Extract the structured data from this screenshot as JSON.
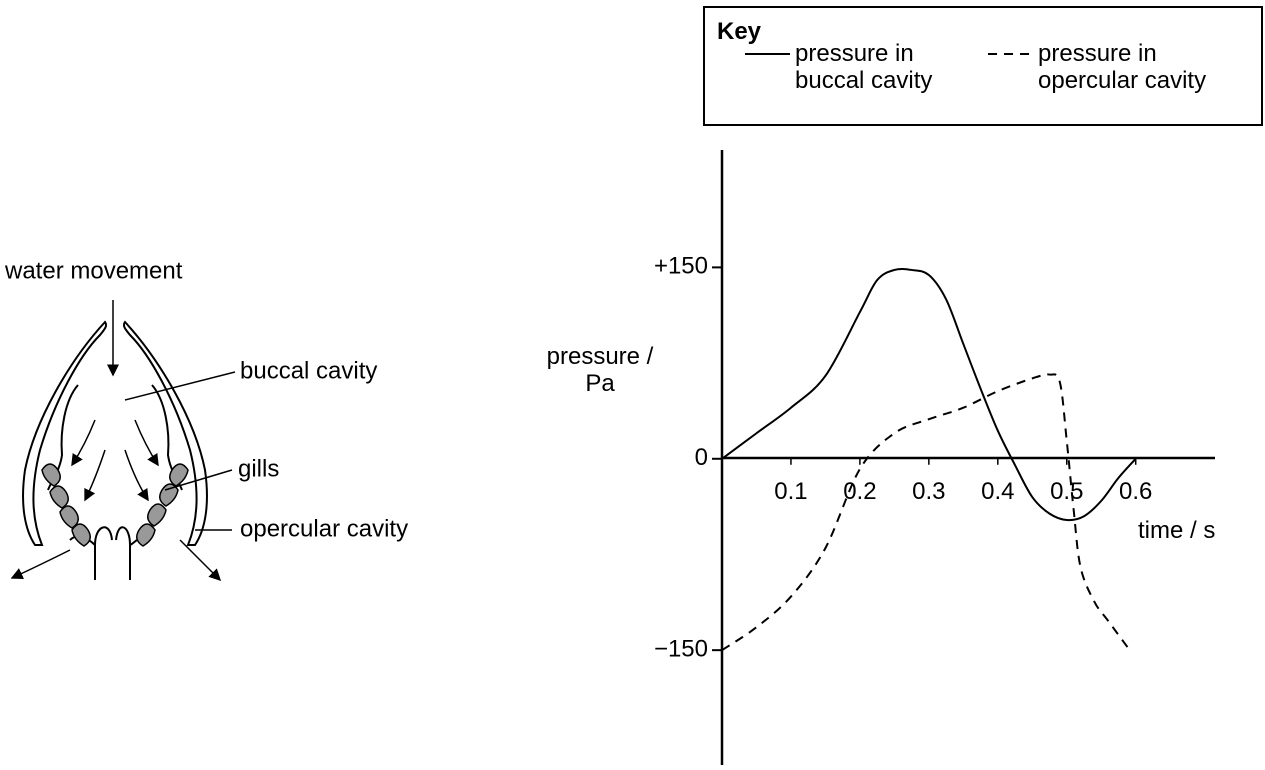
{
  "diagram": {
    "labels": [
      "water movement",
      "buccal cavity",
      "gills",
      "opercular cavity"
    ]
  },
  "chart_data": {
    "type": "line",
    "legend_title": "Key",
    "x_label": "time / s",
    "y_label": "pressure / Pa",
    "xlim": [
      0,
      0.715
    ],
    "ylim": [
      -240,
      242
    ],
    "xticks": [
      0.1,
      0.2,
      0.3,
      0.4,
      0.5,
      0.6
    ],
    "yticks": [
      {
        "value": 150,
        "label": "+150"
      },
      0,
      {
        "value": -150,
        "label": "−150"
      }
    ],
    "series": [
      {
        "name": "pressure in buccal cavity",
        "color": "#000000",
        "line_style": "solid",
        "x": [
          0,
          0.05,
          0.1,
          0.15,
          0.2,
          0.225,
          0.25,
          0.275,
          0.3,
          0.325,
          0.35,
          0.375,
          0.4,
          0.425,
          0.45,
          0.475,
          0.5,
          0.525,
          0.55,
          0.575,
          0.6
        ],
        "values": [
          0,
          20,
          40,
          65,
          115,
          140,
          148,
          148,
          144,
          125,
          90,
          55,
          22,
          -5,
          -30,
          -43,
          -48,
          -45,
          -33,
          -15,
          0
        ]
      },
      {
        "name": "pressure in opercular cavity",
        "color": "#000000",
        "line_style": "dashed",
        "x": [
          0,
          0.05,
          0.1,
          0.15,
          0.2,
          0.25,
          0.3,
          0.35,
          0.4,
          0.45,
          0.475,
          0.49,
          0.5,
          0.51,
          0.52,
          0.54,
          0.56,
          0.59
        ],
        "values": [
          -150,
          -132,
          -108,
          -70,
          -8,
          20,
          31,
          40,
          53,
          63,
          66,
          60,
          14,
          -40,
          -85,
          -112,
          -127,
          -149
        ]
      }
    ]
  }
}
